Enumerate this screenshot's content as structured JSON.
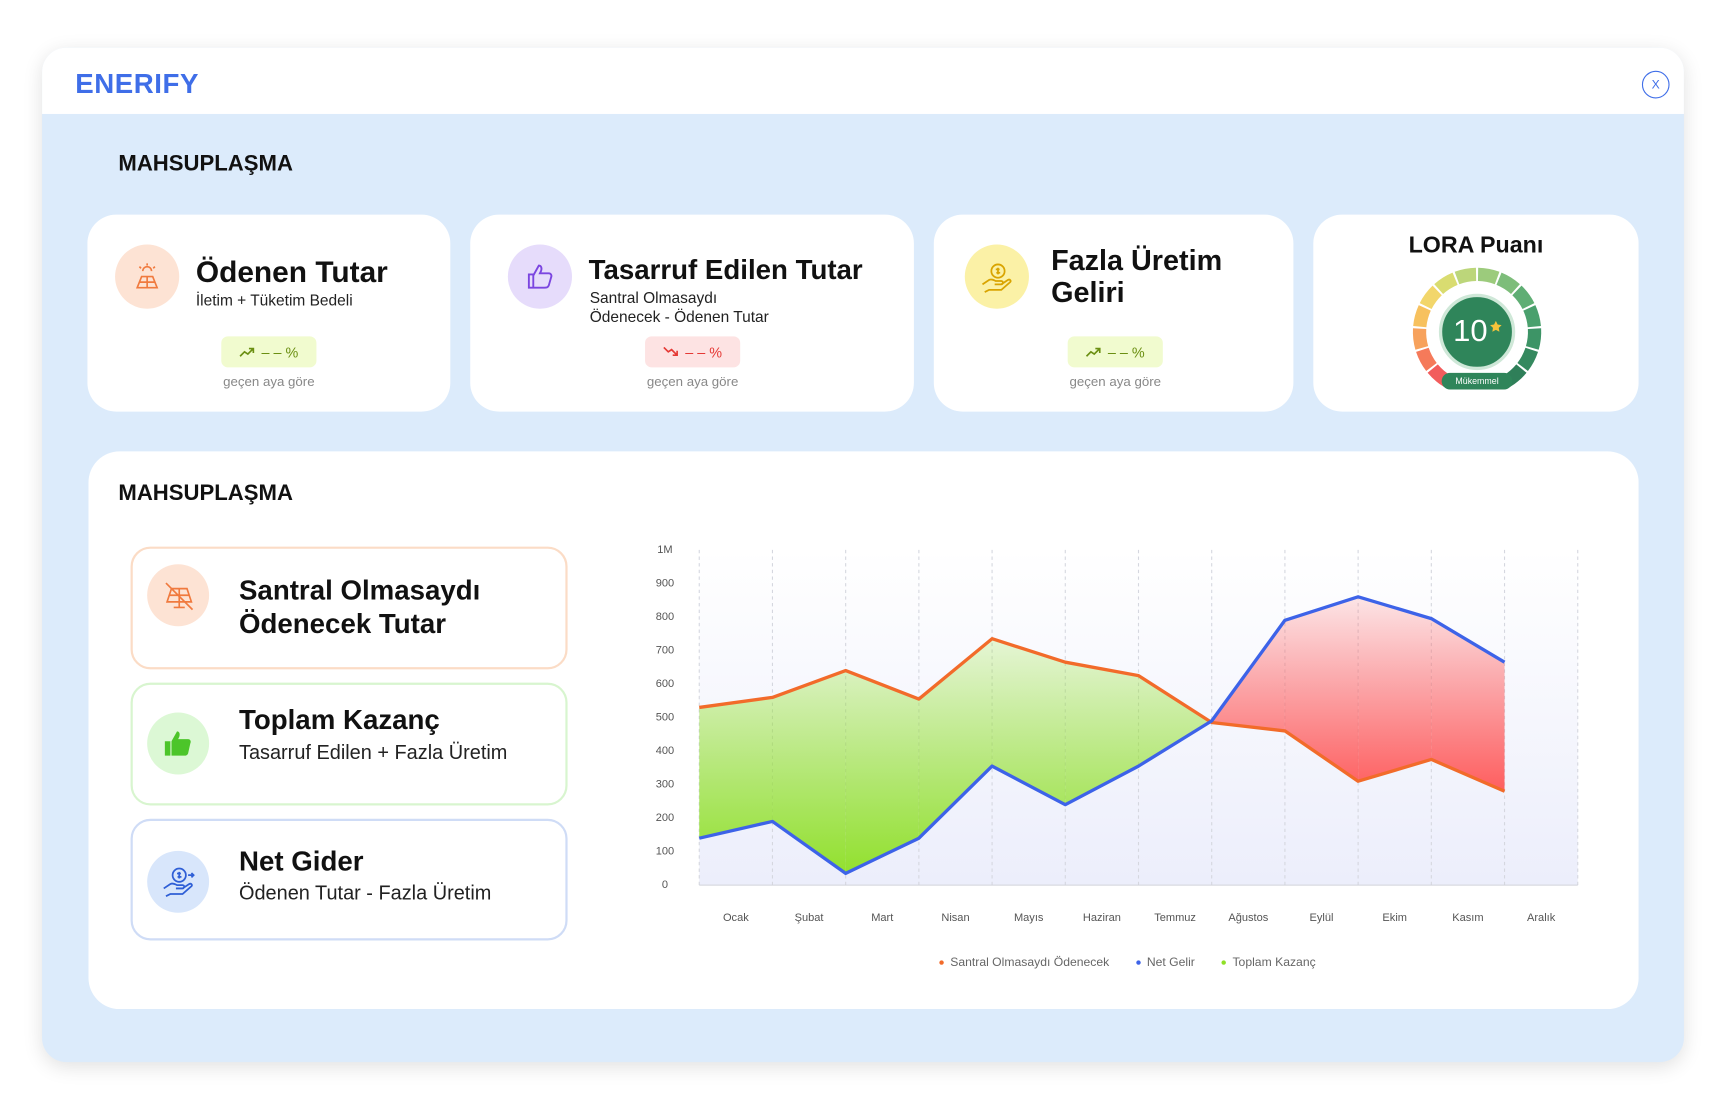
{
  "header": {
    "logo": "ENERIFY",
    "close": "X"
  },
  "summary": {
    "title": "MAHSUPLAŞMA",
    "cards": [
      {
        "title": [
          "Ödenen Tutar"
        ],
        "subtitle": [
          "İletim + Tüketim Bedeli"
        ],
        "trend": "up",
        "change": "– – %",
        "note": "geçen aya göre"
      },
      {
        "title": [
          "Tasarruf Edilen Tutar"
        ],
        "subtitle": [
          "Santral Olmasaydı",
          "Ödenecek - Ödenen Tutar"
        ],
        "trend": "down",
        "change": "– – %",
        "note": "geçen aya göre"
      },
      {
        "title": [
          "Fazla Üretim",
          "Geliri"
        ],
        "subtitle": [],
        "trend": "up",
        "change": "– – %",
        "note": "geçen aya göre"
      }
    ],
    "score_card": {
      "title": "LORA Puanı",
      "score": "10",
      "rating": "Mükemmel"
    }
  },
  "detail": {
    "title": "MAHSUPLAŞMA",
    "items": [
      {
        "title": [
          "Santral Olmasaydı",
          "Ödenecek Tutar"
        ]
      },
      {
        "title": [
          "Toplam Kazanç"
        ],
        "subtitle": "Tasarruf Edilen + Fazla Üretim"
      },
      {
        "title": [
          "Net Gider"
        ],
        "subtitle": "Ödenen Tutar - Fazla Üretim"
      }
    ]
  },
  "chart_data": {
    "type": "area-between",
    "categories": [
      "Ocak",
      "Şubat",
      "Mart",
      "Nisan",
      "Mayıs",
      "Haziran",
      "Temmuz",
      "Ağustos",
      "Eylül",
      "Ekim",
      "Kasım",
      "Aralık"
    ],
    "series": [
      {
        "name": "Santral Olmasaydı Ödenecek",
        "color": "#f26b2a",
        "values": [
          530,
          560,
          640,
          555,
          735,
          665,
          625,
          485,
          460,
          310,
          375,
          280
        ]
      },
      {
        "name": "Net Gelir",
        "color": "#3d63e8",
        "values": [
          140,
          190,
          35,
          140,
          355,
          240,
          355,
          490,
          790,
          860,
          795,
          665
        ]
      },
      {
        "name": "Toplam Kazanç",
        "color": "#8fe026"
      }
    ],
    "negative_color": "#ff5b5b",
    "ylim": [
      0,
      1000
    ],
    "yticks": [
      0,
      100,
      200,
      300,
      400,
      500,
      600,
      700,
      800,
      900,
      {
        "value": 1000,
        "label": "1M"
      }
    ],
    "grid": true
  }
}
